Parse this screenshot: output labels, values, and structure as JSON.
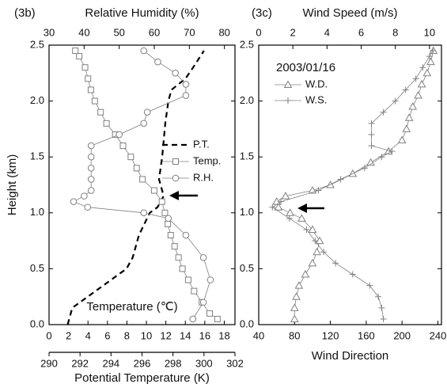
{
  "chart_data": [
    {
      "type": "profile",
      "panel_label": "(3b)",
      "ylabel": "Height (km)",
      "ylim": [
        0,
        2.5
      ],
      "yticks": [
        {
          "value": 0,
          "label": "0.0"
        },
        0.5,
        {
          "value": 1,
          "label": "1.0"
        },
        1.5,
        {
          "value": 2,
          "label": "2.0"
        },
        2.5
      ],
      "legend_position": "center-right",
      "x_axes": [
        {
          "label": "Relative Humidity (%)",
          "position": "top",
          "lim": [
            30,
            83
          ],
          "ticks": [
            30,
            40,
            50,
            60,
            70,
            80
          ]
        },
        {
          "label": "Temperature (℃)",
          "position": "bottom",
          "label_inside": true,
          "lim": [
            0,
            19.1
          ],
          "ticks": [
            0,
            2,
            4,
            6,
            8,
            10,
            12,
            14,
            16,
            18
          ]
        },
        {
          "label": "Potential Temperature (K)",
          "position": "bottom-offset",
          "lim": [
            290,
            302
          ],
          "ticks": [
            290,
            292,
            294,
            296,
            298,
            300,
            302
          ]
        }
      ],
      "series": [
        {
          "name": "P.T.",
          "axis": 2,
          "marker": "none",
          "dashed": true,
          "color": "#000000",
          "y": [
            0.0,
            0.15,
            0.3,
            0.5,
            0.6,
            0.8,
            1.0,
            1.05,
            1.15,
            1.3,
            1.5,
            1.8,
            2.0,
            2.1,
            2.2,
            2.3,
            2.45
          ],
          "x": [
            291.2,
            291.5,
            293.0,
            295.0,
            295.4,
            295.8,
            296.5,
            297.0,
            297.4,
            297.1,
            297.3,
            297.5,
            297.7,
            297.9,
            298.8,
            299.3,
            300.0
          ]
        },
        {
          "name": "Temp.",
          "axis": 1,
          "marker": "square",
          "dashed": false,
          "color": "#808080",
          "y": [
            0.05,
            0.1,
            0.2,
            0.3,
            0.4,
            0.5,
            0.6,
            0.7,
            0.8,
            0.9,
            1.0,
            1.1,
            1.2,
            1.3,
            1.4,
            1.5,
            1.6,
            1.7,
            1.8,
            1.9,
            2.0,
            2.1,
            2.2,
            2.3,
            2.4,
            2.45
          ],
          "x": [
            17.3,
            16.5,
            15.7,
            14.9,
            14.3,
            13.7,
            13.3,
            12.9,
            12.5,
            12.2,
            11.9,
            11.6,
            10.8,
            9.6,
            9.0,
            8.4,
            7.6,
            6.8,
            5.9,
            5.3,
            4.7,
            4.3,
            4.0,
            3.7,
            3.1,
            2.7
          ]
        },
        {
          "name": "R.H.",
          "axis": 0,
          "marker": "circle",
          "dashed": false,
          "color": "#808080",
          "y": [
            0.05,
            0.2,
            0.4,
            0.6,
            0.8,
            0.95,
            1.0,
            1.05,
            1.1,
            1.15,
            1.2,
            1.3,
            1.4,
            1.5,
            1.6,
            1.7,
            1.8,
            1.9,
            2.05,
            2.15,
            2.25,
            2.35,
            2.45
          ],
          "x": [
            71,
            74,
            76,
            74,
            69,
            64,
            57,
            41,
            37,
            40,
            42,
            42,
            42,
            42,
            42,
            50,
            57,
            58,
            69,
            69,
            66,
            61,
            57
          ]
        }
      ]
    },
    {
      "type": "profile",
      "panel_label": "(3c)",
      "annotation": "2003/01/16",
      "ylim": [
        0,
        2.5
      ],
      "yticks": [
        {
          "value": 0,
          "label": "0.0"
        },
        0.5,
        {
          "value": 1,
          "label": "1.0"
        },
        1.5,
        {
          "value": 2,
          "label": "2.0"
        },
        2.5
      ],
      "legend_position": "top-left",
      "x_axes": [
        {
          "label": "Wind Speed (m/s)",
          "position": "top",
          "lim": [
            0,
            10.7
          ],
          "ticks": [
            0,
            2,
            4,
            6,
            8,
            10
          ]
        },
        {
          "label": "Wind Direction",
          "position": "bottom",
          "lim": [
            40,
            244
          ],
          "ticks": [
            40,
            80,
            120,
            160,
            200,
            240
          ]
        }
      ],
      "series": [
        {
          "name": "W.D.",
          "axis": 1,
          "marker": "triangle",
          "dashed": false,
          "color": "#808080",
          "y": [
            0.05,
            0.15,
            0.25,
            0.35,
            0.45,
            0.55,
            0.65,
            0.75,
            0.85,
            0.95,
            1.0,
            1.05,
            1.1,
            1.15,
            1.2,
            1.25,
            1.35,
            1.45,
            1.55,
            1.65,
            1.75,
            1.85,
            1.95,
            2.05,
            2.15,
            2.25,
            2.35,
            2.45
          ],
          "x": [
            80,
            80,
            82,
            85,
            92,
            100,
            105,
            108,
            100,
            88,
            75,
            62,
            60,
            70,
            100,
            120,
            145,
            165,
            185,
            200,
            205,
            208,
            212,
            218,
            222,
            228,
            232,
            235
          ]
        },
        {
          "name": "W.S.",
          "axis": 0,
          "marker": "plus",
          "dashed": false,
          "color": "#808080",
          "y": [
            0.05,
            0.15,
            0.25,
            0.35,
            0.45,
            0.55,
            0.65,
            0.75,
            0.85,
            0.95,
            1.05,
            1.1,
            1.2,
            1.3,
            1.4,
            1.5,
            1.55,
            1.6,
            1.7,
            1.8,
            1.9,
            2.0,
            2.1,
            2.2,
            2.3,
            2.4,
            2.45
          ],
          "x": [
            7.3,
            7.2,
            7.0,
            6.5,
            5.5,
            4.5,
            3.8,
            3.3,
            2.8,
            1.8,
            0.8,
            1.3,
            3.5,
            4.8,
            6.2,
            7.2,
            7.8,
            6.6,
            6.6,
            6.6,
            7.3,
            8.0,
            8.6,
            9.2,
            9.6,
            10.0,
            10.2
          ]
        }
      ]
    }
  ]
}
